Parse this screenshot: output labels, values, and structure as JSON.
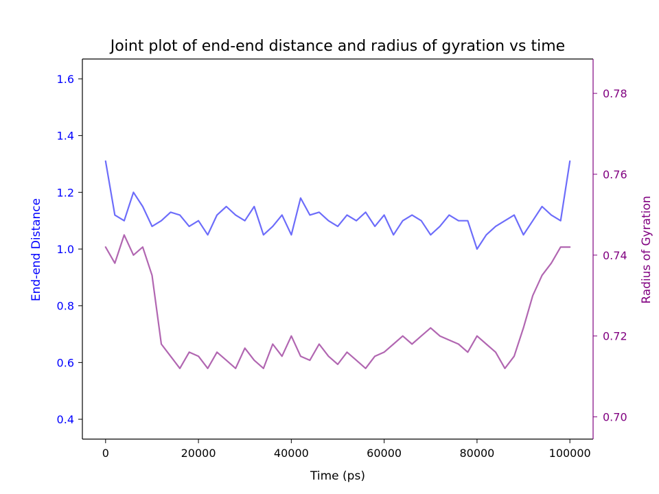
{
  "chart_data": {
    "type": "line",
    "title": "Joint plot of end-end distance and radius of gyration vs time",
    "xlabel": "Time (ps)",
    "y1label": "End-end Distance",
    "y2label": "Radius of Gyration",
    "xlim": [
      -5000,
      105000
    ],
    "y1lim": [
      0.33,
      1.67
    ],
    "y2lim": [
      0.6945,
      0.7885
    ],
    "xticks": [
      0,
      20000,
      40000,
      60000,
      80000,
      100000
    ],
    "y1ticks": [
      0.4,
      0.6,
      0.8,
      1.0,
      1.2,
      1.4,
      1.6
    ],
    "y2ticks": [
      0.7,
      0.72,
      0.74,
      0.76,
      0.78
    ],
    "colors": {
      "end_end": "#0000ff",
      "end_end_line": "#6464fa",
      "rg": "#800080",
      "rg_line": "#a855a8",
      "axis": "#000000"
    },
    "grid": false,
    "series": [
      {
        "name": "",
        "axis": "left",
        "x": [
          0,
          2000,
          4000,
          6000,
          8000,
          10000,
          12000,
          14000,
          16000,
          18000,
          20000,
          22000,
          24000,
          26000,
          28000,
          30000,
          32000,
          34000,
          36000,
          38000,
          40000,
          42000,
          44000,
          46000,
          48000,
          50000,
          52000,
          54000,
          56000,
          58000,
          60000,
          62000,
          64000,
          66000,
          68000,
          70000,
          72000,
          74000,
          76000,
          78000,
          80000,
          82000,
          84000,
          86000,
          88000,
          90000,
          92000,
          94000,
          96000,
          98000,
          100000
        ],
        "values": [
          1.31,
          1.12,
          1.1,
          1.2,
          1.15,
          1.08,
          1.1,
          1.13,
          1.12,
          1.08,
          1.1,
          1.05,
          1.12,
          1.15,
          1.12,
          1.1,
          1.15,
          1.05,
          1.08,
          1.12,
          1.05,
          1.18,
          1.12,
          1.13,
          1.1,
          1.08,
          1.12,
          1.1,
          1.13,
          1.08,
          1.12,
          1.05,
          1.1,
          1.12,
          1.1,
          1.05,
          1.08,
          1.12,
          1.1,
          1.1,
          1.0,
          1.05,
          1.08,
          1.1,
          1.12,
          1.05,
          1.1,
          1.15,
          1.12,
          1.1,
          1.31
        ]
      },
      {
        "name": "",
        "axis": "right",
        "x": [
          0,
          2000,
          4000,
          6000,
          8000,
          10000,
          12000,
          14000,
          16000,
          18000,
          20000,
          22000,
          24000,
          26000,
          28000,
          30000,
          32000,
          34000,
          36000,
          38000,
          40000,
          42000,
          44000,
          46000,
          48000,
          50000,
          52000,
          54000,
          56000,
          58000,
          60000,
          62000,
          64000,
          66000,
          68000,
          70000,
          72000,
          74000,
          76000,
          78000,
          80000,
          82000,
          84000,
          86000,
          88000,
          90000,
          92000,
          94000,
          96000,
          98000,
          100000
        ],
        "values": [
          0.742,
          0.738,
          0.745,
          0.74,
          0.742,
          0.735,
          0.718,
          0.715,
          0.712,
          0.716,
          0.715,
          0.712,
          0.716,
          0.714,
          0.712,
          0.717,
          0.714,
          0.712,
          0.718,
          0.715,
          0.72,
          0.715,
          0.714,
          0.718,
          0.715,
          0.713,
          0.716,
          0.714,
          0.712,
          0.715,
          0.716,
          0.718,
          0.72,
          0.718,
          0.72,
          0.722,
          0.72,
          0.719,
          0.718,
          0.716,
          0.72,
          0.718,
          0.716,
          0.712,
          0.715,
          0.722,
          0.73,
          0.735,
          0.738,
          0.742,
          0.742
        ]
      }
    ]
  }
}
